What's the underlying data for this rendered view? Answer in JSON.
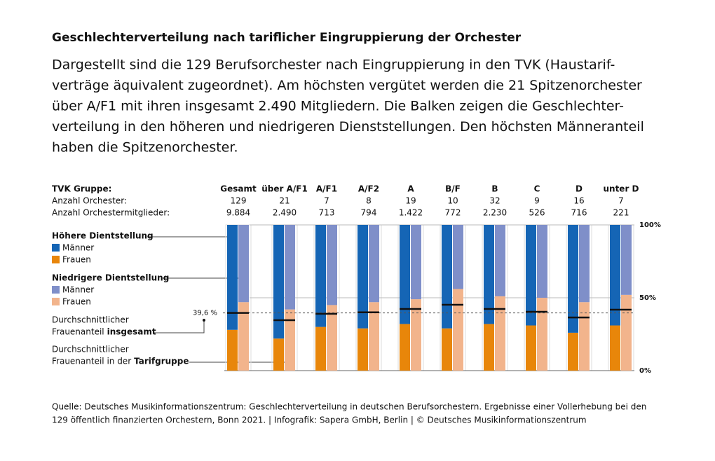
{
  "chart_data": {
    "type": "paired-stacked-bar",
    "title": "Geschlechterverteilung nach tariflicher Eingruppierung der Orchester",
    "subtitle_lines": [
      "Dargestellt sind die 129 Berufsorchester nach Eingruppierung in den TVK (Haustarif-",
      "verträge äquivalent zugeordnet). Am höchsten vergütet werden die 21 Spitzenorchester",
      "über A/F1 mit ihren insgesamt 2.490 Mitgliedern. Die Balken zeigen die Geschlechter-",
      "verteilung in den höheren und niedrigeren Dienststellungen. Den höchsten Männeranteil",
      "haben die Spitzenorchester."
    ],
    "row_labels": [
      "TVK Gruppe:",
      "Anzahl Orchester:",
      "Anzahl Orchestermitglieder:"
    ],
    "categories": [
      "Gesamt",
      "über A/F1",
      "A/F1",
      "A/F2",
      "A",
      "B/F",
      "B",
      "C",
      "D",
      "unter D"
    ],
    "orchestra_counts": [
      129,
      21,
      7,
      8,
      19,
      10,
      32,
      9,
      16,
      7
    ],
    "member_counts": [
      "9.884",
      "2.490",
      "713",
      "794",
      "1.422",
      "772",
      "2.230",
      "526",
      "716",
      "221"
    ],
    "legend_groups": [
      "Höhere Dientstellung",
      "Niedrigere  Dientstellung"
    ],
    "series": [
      {
        "name": "Männer",
        "group": 0,
        "color": "#1565b5",
        "values": [
          72,
          78,
          70,
          71,
          68,
          71,
          68,
          69,
          74,
          69
        ]
      },
      {
        "name": "Frauen",
        "group": 0,
        "color": "#e8860a",
        "values": [
          28,
          22,
          30,
          29,
          32,
          29,
          32,
          31,
          26,
          31
        ]
      },
      {
        "name": "Männer",
        "group": 1,
        "color": "#7f8fc9",
        "values": [
          53,
          58,
          55,
          53,
          51,
          44,
          49,
          50,
          53,
          48
        ]
      },
      {
        "name": "Frauen",
        "group": 1,
        "color": "#f2b48c",
        "values": [
          47,
          42,
          45,
          47,
          49,
          56,
          51,
          50,
          47,
          52
        ]
      }
    ],
    "group_female_share": [
      39.6,
      34.6,
      39,
      40,
      42.3,
      45.2,
      42.3,
      40.4,
      36.5,
      41.8
    ],
    "overall_female_share": {
      "value": 39.6,
      "label": "39,6 %"
    },
    "overall_label_lines": [
      "Durchschnittlicher",
      "Frauenanteil",
      "insgesamt"
    ],
    "group_label_lines": [
      "Durchschnittlicher",
      "Frauenanteil in der",
      "Tarifgruppe"
    ],
    "ylim": [
      0,
      100
    ],
    "yticks": [
      {
        "value": 0,
        "label": "0%"
      },
      {
        "value": 50,
        "label": "50%"
      },
      {
        "value": 100,
        "label": "100%"
      }
    ],
    "source": [
      "Quelle: Deutsches Musikinformationszentrum: Geschlechterverteilung in deutschen Berufsorchestern. Ergebnisse einer Vollerhebung bei den",
      "129 öffentlich finanzierten Orchestern, Bonn 2021. | Infografik: Sapera GmbH, Berlin | © Deutsches Musikinformationszentrum"
    ]
  }
}
